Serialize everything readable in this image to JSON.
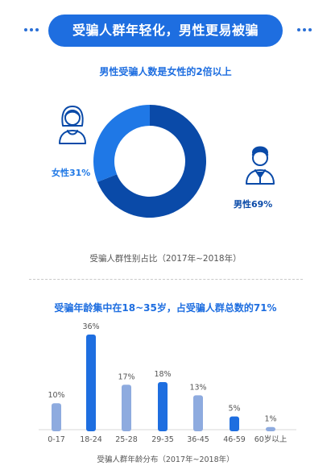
{
  "header": {
    "title": "受骗人群年轻化，男性更易被骗"
  },
  "colors": {
    "dark_blue": "#0a4aa8",
    "mid_blue": "#1f78e6",
    "light_blue": "#8eabdf",
    "accent": "#1e6ee0"
  },
  "chart_data": [
    {
      "type": "pie",
      "title": "男性受骗人数是女性的2倍以上",
      "caption": "受骗人群性别占比（2017年~2018年）",
      "slices": [
        {
          "label": "男性",
          "value": 69,
          "display": "男性69%"
        },
        {
          "label": "女性",
          "value": 31,
          "display": "女性31%"
        }
      ],
      "icons": [
        "female-user-icon",
        "male-user-icon"
      ]
    },
    {
      "type": "bar",
      "title": "受骗年龄集中在18~35岁，占受骗人群总数的71%",
      "caption": "受骗人群年龄分布（2017年~2018年）",
      "categories": [
        "0-17",
        "18-24",
        "25-28",
        "29-35",
        "36-45",
        "46-59",
        "60岁以上"
      ],
      "values": [
        10,
        36,
        17,
        18,
        13,
        5,
        1
      ],
      "value_labels": [
        "10%",
        "36%",
        "17%",
        "18%",
        "13%",
        "5%",
        "1%"
      ],
      "highlight": [
        false,
        true,
        false,
        true,
        false,
        true,
        false
      ],
      "ylim": [
        0,
        36
      ]
    }
  ]
}
